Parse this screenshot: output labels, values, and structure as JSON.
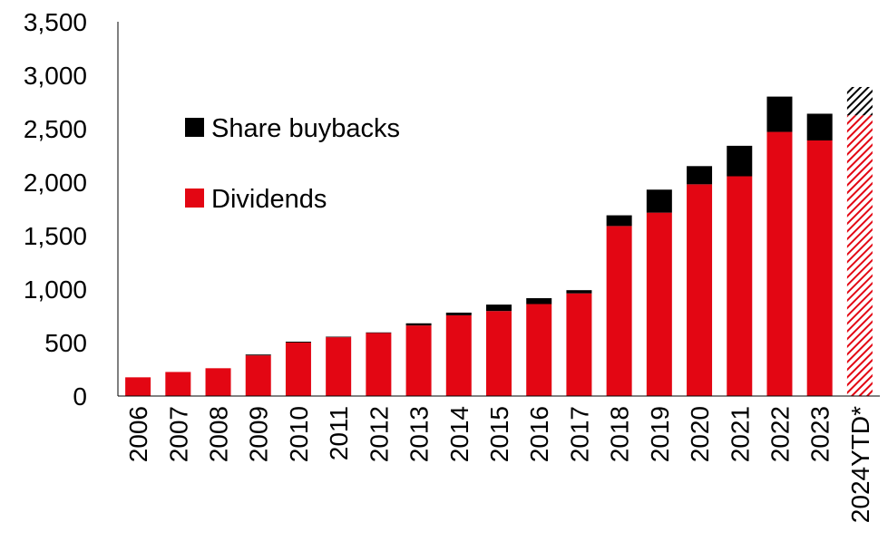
{
  "chart_data": {
    "type": "bar",
    "stacked": true,
    "categories": [
      "2006",
      "2007",
      "2008",
      "2009",
      "2010",
      "2011",
      "2012",
      "2013",
      "2014",
      "2015",
      "2016",
      "2017",
      "2018",
      "2019",
      "2020",
      "2021",
      "2022",
      "2023",
      "2024YTD*"
    ],
    "series": [
      {
        "name": "Dividends",
        "color": "#e30613",
        "values": [
          175,
          225,
          260,
          380,
          500,
          550,
          590,
          660,
          755,
          795,
          860,
          960,
          1590,
          1715,
          1980,
          2055,
          2470,
          2390,
          2625
        ]
      },
      {
        "name": "Share buybacks",
        "color": "#000000",
        "values": [
          0,
          0,
          0,
          8,
          8,
          5,
          5,
          20,
          25,
          60,
          55,
          30,
          100,
          215,
          170,
          285,
          330,
          250,
          265
        ]
      }
    ],
    "hatched_categories": [
      "2024YTD*"
    ],
    "ylim": [
      0,
      3500
    ],
    "yticks": [
      0,
      500,
      1000,
      1500,
      2000,
      2500,
      3000,
      3500
    ],
    "ytick_labels": [
      "0",
      "500",
      "1,000",
      "1,500",
      "2,000",
      "2,500",
      "3,000",
      "3,500"
    ],
    "title": "",
    "xlabel": "",
    "ylabel": "",
    "legend": {
      "placement": "upper-left",
      "order": [
        "Share buybacks",
        "Dividends"
      ]
    },
    "grid": false
  }
}
